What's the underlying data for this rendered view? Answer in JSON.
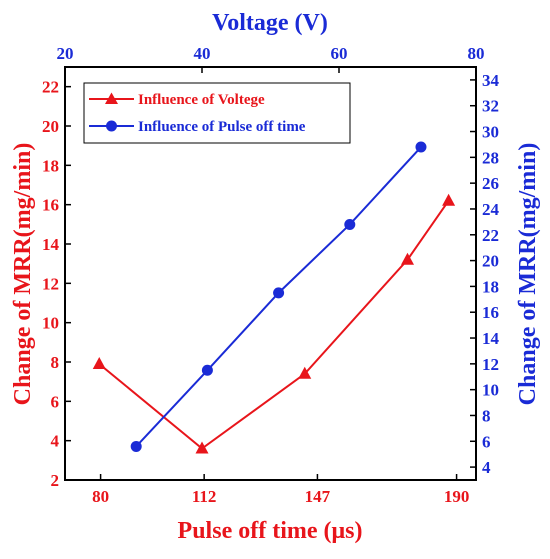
{
  "chart_data": {
    "type": "line",
    "title": "",
    "top_axis": {
      "label": "Voltage (V)",
      "range": [
        20,
        80
      ],
      "ticks": [
        "20",
        "40",
        "60",
        "80"
      ],
      "tick_values": [
        20,
        40,
        60,
        80
      ],
      "color": "#1a2bd6"
    },
    "bottom_axis": {
      "label": "Pulse off time (μs)",
      "range": [
        69,
        196
      ],
      "ticks": [
        "80",
        "112",
        "147",
        "190"
      ],
      "tick_values": [
        80,
        112,
        147,
        190
      ],
      "color": "#e8151b"
    },
    "left_axis": {
      "label": "Change of MRR(mg/min)",
      "range": [
        2,
        23
      ],
      "ticks": [
        "2",
        "4",
        "6",
        "8",
        "10",
        "12",
        "14",
        "16",
        "18",
        "20",
        "22"
      ],
      "tick_values": [
        2,
        4,
        6,
        8,
        10,
        12,
        14,
        16,
        18,
        20,
        22
      ],
      "color": "#e8151b"
    },
    "right_axis": {
      "label": "Change of MRR(mg/min)",
      "range": [
        3,
        35
      ],
      "ticks": [
        "4",
        "6",
        "8",
        "10",
        "12",
        "14",
        "16",
        "18",
        "20",
        "22",
        "24",
        "26",
        "28",
        "30",
        "32",
        "34"
      ],
      "tick_values": [
        4,
        6,
        8,
        10,
        12,
        14,
        16,
        18,
        20,
        22,
        24,
        26,
        28,
        30,
        32,
        34
      ],
      "color": "#1a2bd6"
    },
    "series": [
      {
        "name": "Influence of Voltege",
        "color": "#e8151b",
        "marker": "triangle",
        "x_axis": "top",
        "y_axis": "left",
        "points": [
          {
            "x": 25,
            "y": 7.9
          },
          {
            "x": 40,
            "y": 3.6
          },
          {
            "x": 55,
            "y": 7.4
          },
          {
            "x": 70,
            "y": 13.2
          },
          {
            "x": 76,
            "y": 16.2
          }
        ]
      },
      {
        "name": "Influence of Pulse off time",
        "color": "#1a2bd6",
        "marker": "circle",
        "x_axis": "bottom",
        "y_axis": "right",
        "points": [
          {
            "x": 91,
            "y": 5.6
          },
          {
            "x": 113,
            "y": 11.5
          },
          {
            "x": 135,
            "y": 17.5
          },
          {
            "x": 157,
            "y": 22.8
          },
          {
            "x": 179,
            "y": 28.8
          }
        ]
      }
    ],
    "legend": {
      "position": "top-left"
    },
    "grid": false
  }
}
